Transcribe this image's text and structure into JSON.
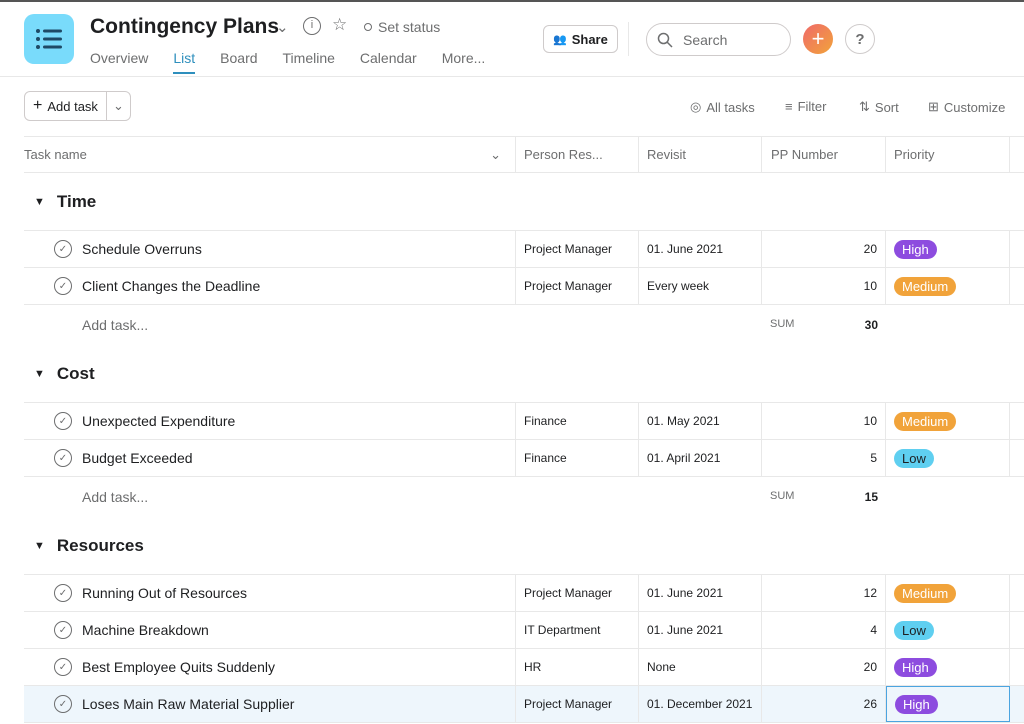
{
  "header": {
    "title": "Contingency Plans",
    "set_status": "Set status",
    "share": "Share",
    "search_placeholder": "Search",
    "help": "?",
    "tabs": [
      {
        "label": "Overview"
      },
      {
        "label": "List",
        "active": true
      },
      {
        "label": "Board"
      },
      {
        "label": "Timeline"
      },
      {
        "label": "Calendar"
      },
      {
        "label": "More..."
      }
    ]
  },
  "toolbar": {
    "add_task": "Add task",
    "all_tasks": "All tasks",
    "filter": "Filter",
    "sort": "Sort",
    "customize": "Customize"
  },
  "columns": [
    "Task name",
    "Person Res...",
    "Revisit",
    "PP Number",
    "Priority"
  ],
  "priority_colors": {
    "High": "#8d4cdf",
    "Medium": "#f1a33a",
    "Low": "#5fcff0"
  },
  "add_task_label": "Add task...",
  "sum_label": "SUM",
  "sections": [
    {
      "name": "Time",
      "sum": "30",
      "tasks": [
        {
          "name": "Schedule Overruns",
          "person": "Project Manager",
          "revisit": "01. June 2021",
          "pp": "20",
          "priority": "High"
        },
        {
          "name": "Client Changes the Deadline",
          "person": "Project Manager",
          "revisit": "Every week",
          "pp": "10",
          "priority": "Medium"
        }
      ]
    },
    {
      "name": "Cost",
      "sum": "15",
      "tasks": [
        {
          "name": "Unexpected Expenditure",
          "person": "Finance",
          "revisit": "01. May 2021",
          "pp": "10",
          "priority": "Medium"
        },
        {
          "name": "Budget Exceeded",
          "person": "Finance",
          "revisit": "01. April 2021",
          "pp": "5",
          "priority": "Low"
        }
      ]
    },
    {
      "name": "Resources",
      "tasks": [
        {
          "name": "Running Out of Resources",
          "person": "Project Manager",
          "revisit": "01. June 2021",
          "pp": "12",
          "priority": "Medium"
        },
        {
          "name": "Machine Breakdown",
          "person": "IT Department",
          "revisit": "01. June 2021",
          "pp": "4",
          "priority": "Low"
        },
        {
          "name": "Best Employee Quits Suddenly",
          "person": "HR",
          "revisit": "None",
          "pp": "20",
          "priority": "High"
        },
        {
          "name": "Loses Main Raw Material Supplier",
          "person": "Project Manager",
          "revisit": "01. December 2021",
          "pp": "26",
          "priority": "High",
          "selected": true
        }
      ]
    }
  ]
}
